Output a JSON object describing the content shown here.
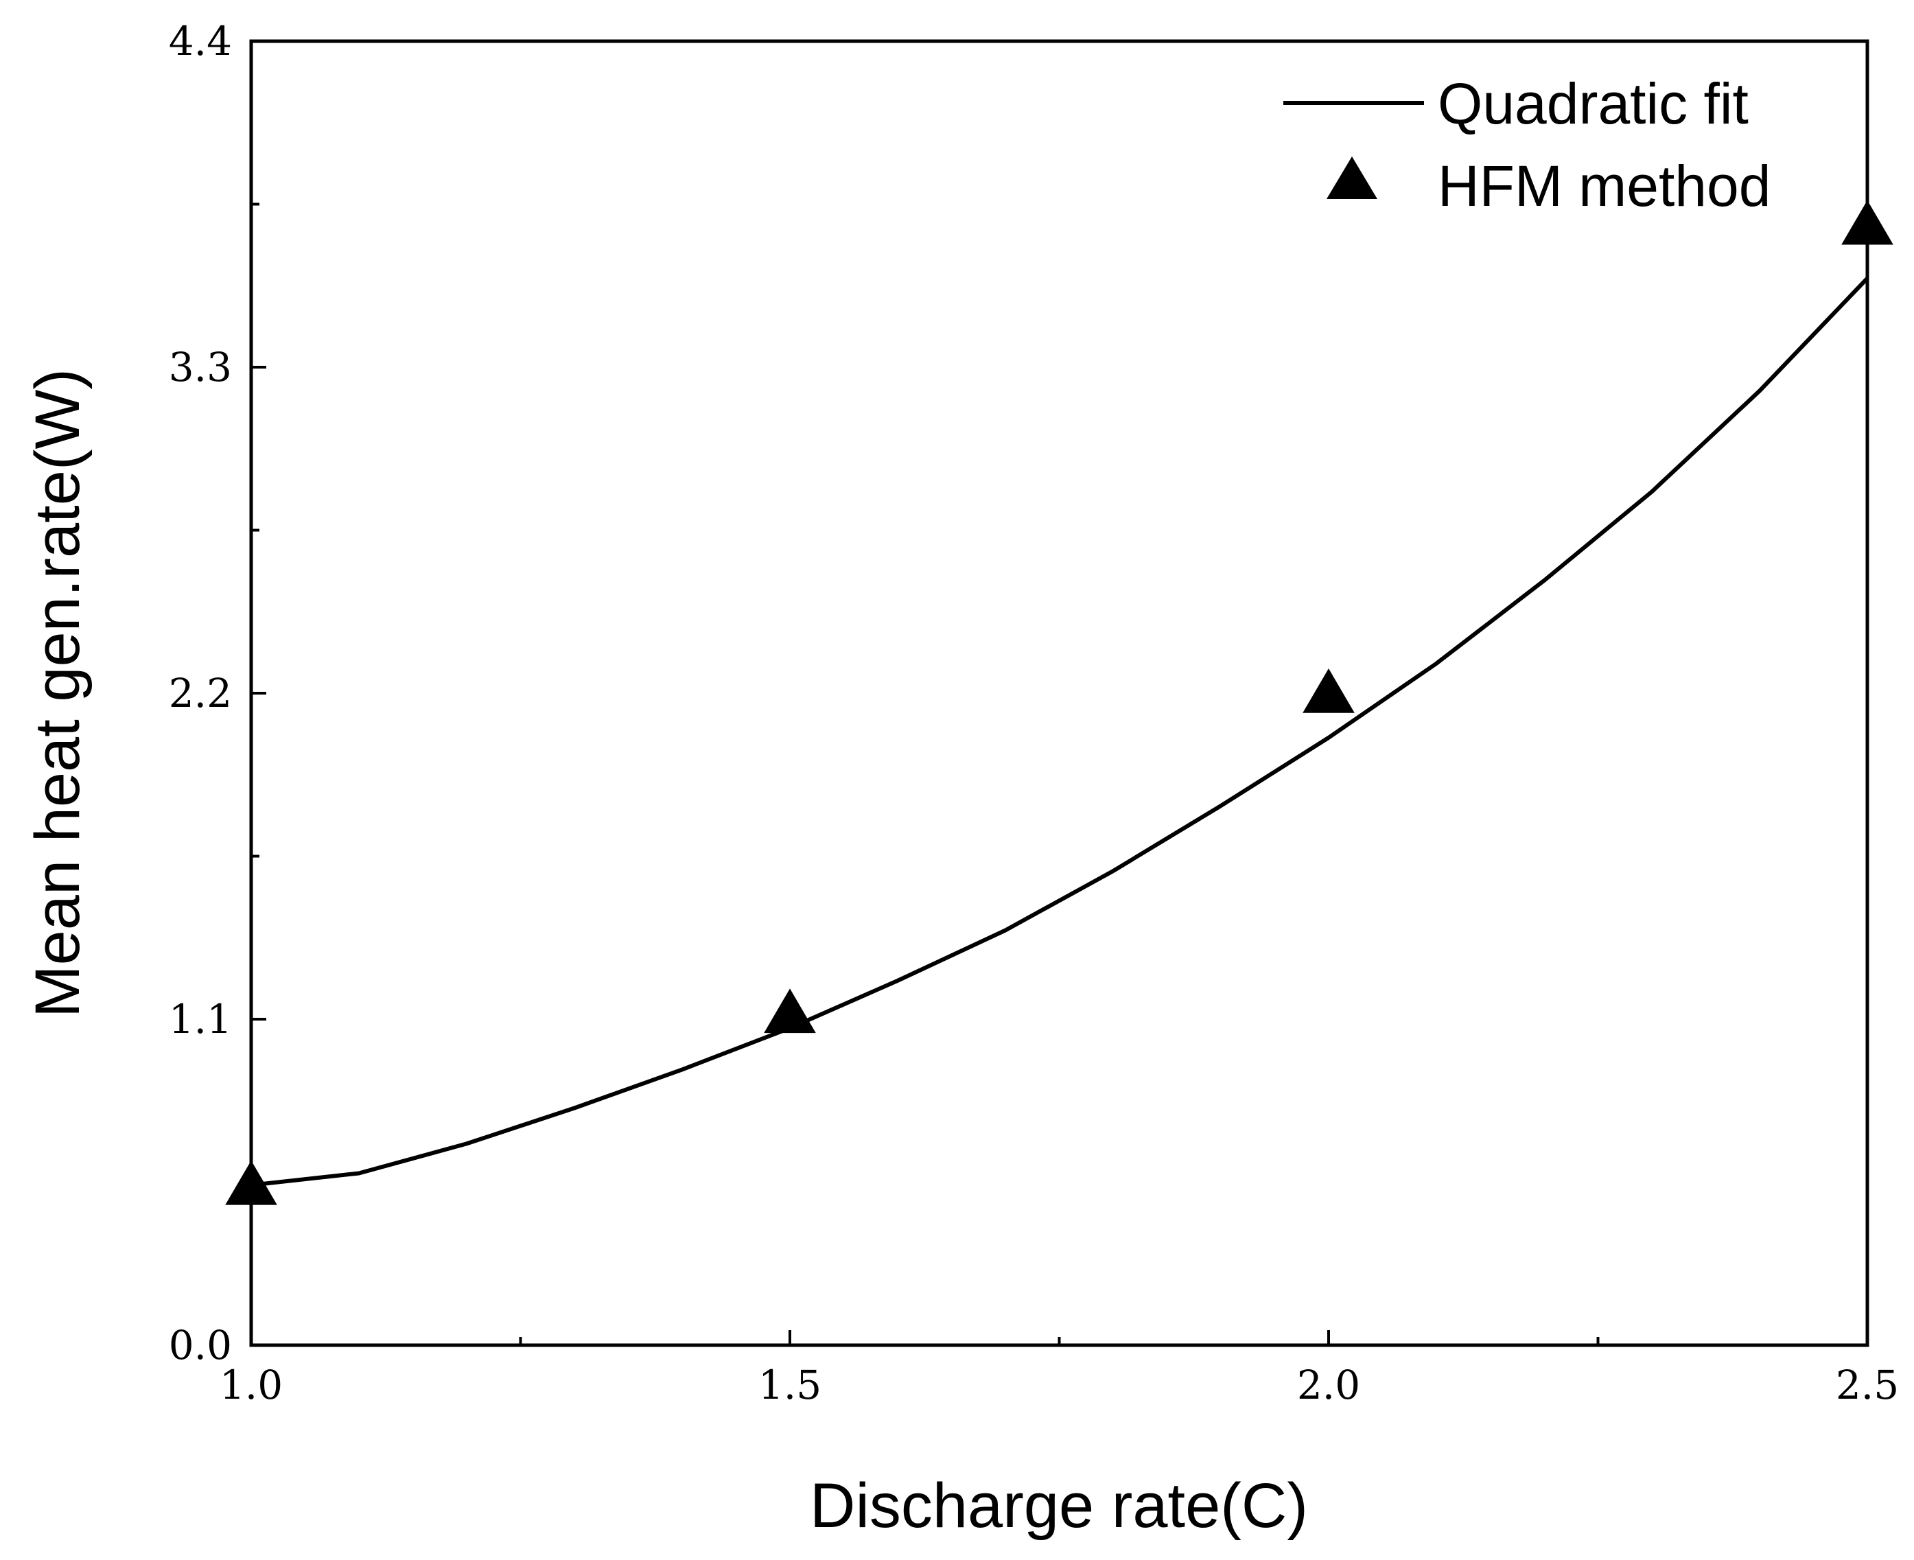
{
  "chart_data": {
    "type": "line",
    "title": "",
    "xlabel": "Discharge rate(C)",
    "ylabel": "Mean heat gen.rate(W)",
    "xlim": [
      1.0,
      2.5
    ],
    "ylim": [
      0.0,
      4.4
    ],
    "xticks": [
      1.0,
      1.5,
      2.0,
      2.5
    ],
    "xtick_labels": [
      "1.0",
      "1.5",
      "2.0",
      "2.5"
    ],
    "yticks": [
      0.0,
      1.1,
      2.2,
      3.3,
      4.4
    ],
    "ytick_labels": [
      "0.0",
      "1.1",
      "2.2",
      "3.3",
      "4.4"
    ],
    "grid": false,
    "legend_position": "top-right",
    "series": [
      {
        "name": "Quadratic fit",
        "kind": "line",
        "color": "#000000",
        "x": [
          1.0,
          1.1,
          1.2,
          1.3,
          1.4,
          1.5,
          1.6,
          1.7,
          1.8,
          1.9,
          2.0,
          2.1,
          2.2,
          2.3,
          2.4,
          2.5
        ],
        "y": [
          0.54,
          0.58,
          0.68,
          0.8,
          0.93,
          1.07,
          1.23,
          1.4,
          1.6,
          1.82,
          2.05,
          2.3,
          2.58,
          2.88,
          3.22,
          3.6
        ]
      },
      {
        "name": "HFM method",
        "kind": "scatter",
        "marker": "triangle",
        "color": "#000000",
        "x": [
          1.0,
          1.5,
          2.0,
          2.5
        ],
        "y": [
          0.54,
          1.12,
          2.2,
          3.78
        ]
      }
    ]
  }
}
